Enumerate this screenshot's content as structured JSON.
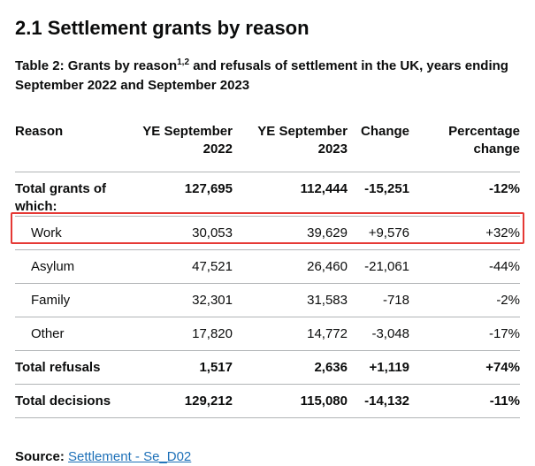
{
  "heading": "2.1 Settlement grants by reason",
  "caption": {
    "prefix": "Table 2: Grants by reason",
    "sup": "1,2",
    "suffix": " and refusals of settlement in the UK, years ending September 2022 and September 2023"
  },
  "table": {
    "headers": {
      "reason": "Reason",
      "ye2022": "YE September 2022",
      "ye2023": "YE September 2023",
      "change": "Change",
      "pct": "Percentage change"
    },
    "rows": {
      "total_grants": {
        "reason": "Total grants of which:",
        "ye2022": "127,695",
        "ye2023": "112,444",
        "change": "-15,251",
        "pct": "-12%"
      },
      "work": {
        "reason": "Work",
        "ye2022": "30,053",
        "ye2023": "39,629",
        "change": "+9,576",
        "pct": "+32%"
      },
      "asylum": {
        "reason": "Asylum",
        "ye2022": "47,521",
        "ye2023": "26,460",
        "change": "-21,061",
        "pct": "-44%"
      },
      "family": {
        "reason": "Family",
        "ye2022": "32,301",
        "ye2023": "31,583",
        "change": "-718",
        "pct": "-2%"
      },
      "other": {
        "reason": "Other",
        "ye2022": "17,820",
        "ye2023": "14,772",
        "change": "-3,048",
        "pct": "-17%"
      },
      "total_refusals": {
        "reason": "Total refusals",
        "ye2022": "1,517",
        "ye2023": "2,636",
        "change": "+1,119",
        "pct": "+74%"
      },
      "total_decisions": {
        "reason": "Total decisions",
        "ye2022": "129,212",
        "ye2023": "115,080",
        "change": "-14,132",
        "pct": "-11%"
      }
    }
  },
  "source": {
    "label": "Source:",
    "link_text": "Settlement - Se_D02"
  },
  "colors": {
    "text": "#0b0c0c",
    "link": "#1d70b8",
    "border": "#b1b4b6",
    "highlight": "#e53935"
  }
}
